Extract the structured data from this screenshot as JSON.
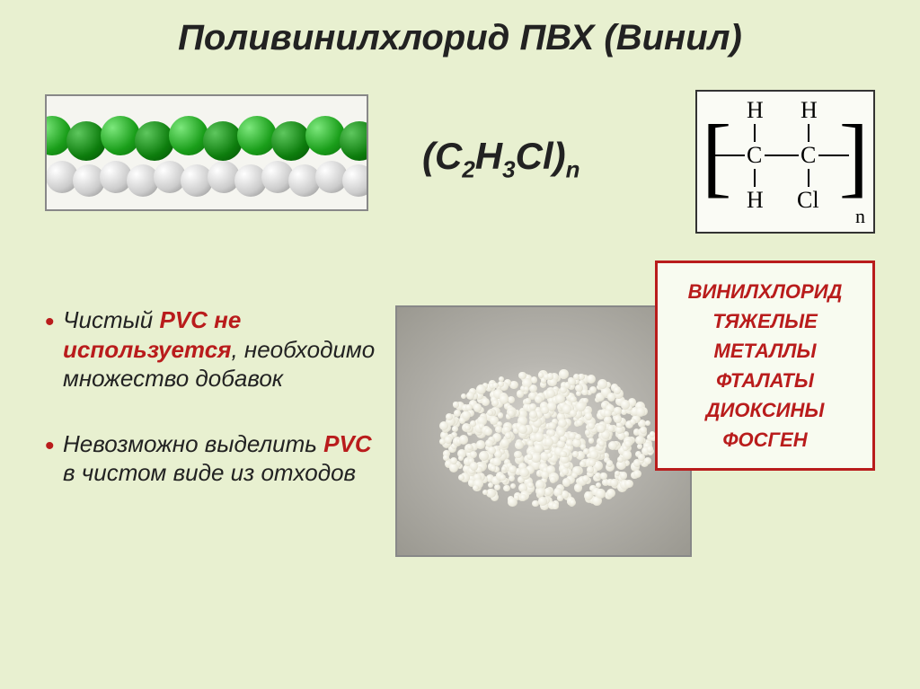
{
  "title": "Поливинилхлорид ПВХ (Винил)",
  "formula_plain": "(C2H3Cl)n",
  "formula_parts": {
    "open": "(С",
    "s1": "2",
    "mid1": "Н",
    "s2": "3",
    "mid2": "Cl)",
    "s3": "n"
  },
  "structure": {
    "atoms": [
      "H",
      "H",
      "C",
      "C",
      "H",
      "Cl"
    ],
    "subscript": "n"
  },
  "bullets": [
    {
      "prefix": "Чистый ",
      "highlight": "PVC не используется",
      "suffix": ", необходимо множество добавок"
    },
    {
      "prefix": "Невозможно выделить ",
      "highlight": "PVC",
      "suffix": " в чистом виде из отходов"
    }
  ],
  "red_box": [
    "ВИНИЛХЛОРИД",
    "ТЯЖЕЛЫЕ МЕТАЛЛЫ",
    "ФТАЛАТЫ",
    "ДИОКСИНЫ",
    "ФОСГЕН"
  ],
  "colors": {
    "background": "#e8f0d0",
    "accent_red": "#b91c1c",
    "green_sphere": "#1a9e1a",
    "grey_sphere": "#cccccc",
    "border_grey": "#888888"
  }
}
